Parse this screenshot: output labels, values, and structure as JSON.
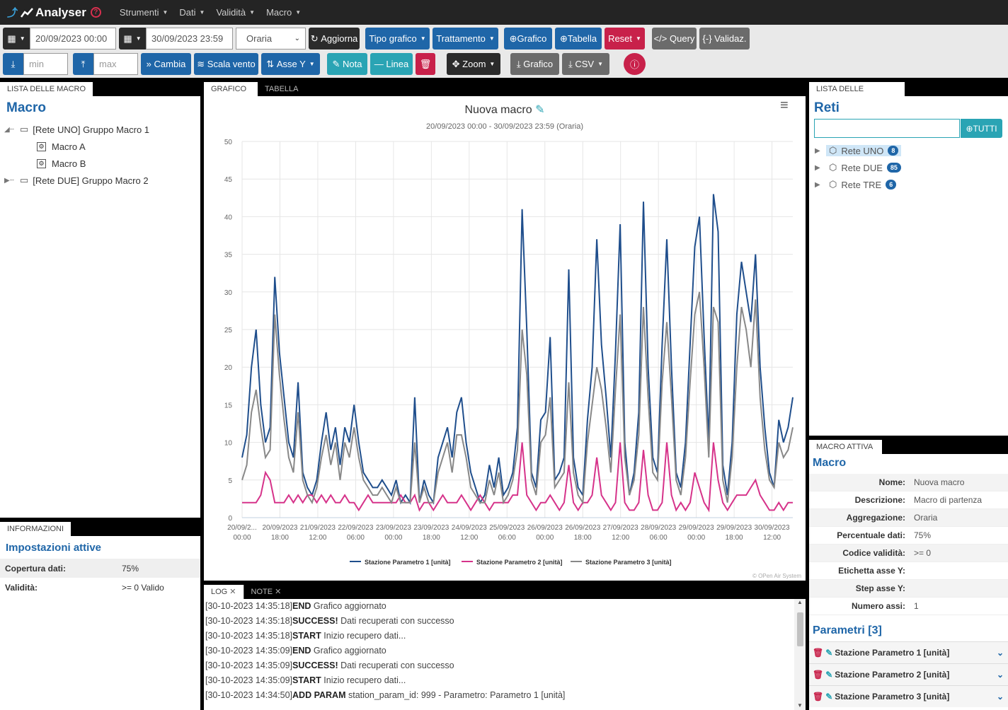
{
  "nav": {
    "brand": "Analyser",
    "help": "?",
    "menus": [
      "Strumenti",
      "Dati",
      "Validità",
      "Macro"
    ]
  },
  "toolbar": {
    "date_from": "20/09/2023 00:00",
    "date_to": "30/09/2023 23:59",
    "aggregation": "Oraria",
    "refresh": "Aggiorna",
    "chart_type": "Tipo grafico",
    "treatment": "Trattamento",
    "add_chart": "Grafico",
    "add_table": "Tabella",
    "reset": "Reset",
    "query": "Query",
    "validate": "Validaz.",
    "min_placeholder": "min",
    "max_placeholder": "max",
    "change": "Cambia",
    "wind_scale": "Scala vento",
    "y_axis": "Asse Y",
    "note": "Nota",
    "line": "Linea",
    "zoom": "Zoom",
    "chart_dl": "Grafico",
    "csv": "CSV"
  },
  "left": {
    "tab": "Lista delle macro",
    "title": "Macro",
    "tree": [
      {
        "label": "[Rete UNO] Gruppo Macro 1",
        "children": [
          "Macro A",
          "Macro B"
        ]
      },
      {
        "label": "[Rete DUE] Gruppo Macro 2"
      }
    ]
  },
  "info": {
    "tab": "Informazioni",
    "title": "Impostazioni attive",
    "rows": [
      {
        "k": "Copertura dati:",
        "v": "75%"
      },
      {
        "k": "Validità:",
        "v": ">= 0 Valido"
      }
    ]
  },
  "center": {
    "tabs": [
      "Grafico",
      "Tabella"
    ],
    "credits": "© OPen Air System"
  },
  "chart_data": {
    "type": "line",
    "title": "Nuova macro",
    "subtitle": "20/09/2023 00:00 - 30/09/2023 23:59 (Oraria)",
    "ylim": [
      0,
      50
    ],
    "yticks": [
      0,
      5,
      10,
      15,
      20,
      25,
      30,
      35,
      40,
      45,
      50
    ],
    "xticks": [
      [
        "20/09/2...",
        "00:00"
      ],
      [
        "20/09/2023",
        "18:00"
      ],
      [
        "21/09/2023",
        "12:00"
      ],
      [
        "22/09/2023",
        "06:00"
      ],
      [
        "23/09/2023",
        "00:00"
      ],
      [
        "23/09/2023",
        "18:00"
      ],
      [
        "24/09/2023",
        "12:00"
      ],
      [
        "25/09/2023",
        "06:00"
      ],
      [
        "26/09/2023",
        "00:00"
      ],
      [
        "26/09/2023",
        "18:00"
      ],
      [
        "27/09/2023",
        "12:00"
      ],
      [
        "28/09/2023",
        "06:00"
      ],
      [
        "29/09/2023",
        "00:00"
      ],
      [
        "29/09/2023",
        "18:00"
      ],
      [
        "30/09/2023",
        "12:00"
      ]
    ],
    "legend": "bottom",
    "series": [
      {
        "name": "Stazione Parametro 1 [unità]",
        "color": "#1f4e8c",
        "values": [
          8,
          11,
          20,
          25,
          15,
          10,
          12,
          32,
          22,
          16,
          10,
          8,
          18,
          6,
          4,
          3,
          5,
          10,
          14,
          9,
          12,
          7,
          12,
          10,
          15,
          10,
          6,
          5,
          4,
          4,
          5,
          4,
          3,
          5,
          2,
          3,
          2,
          16,
          2,
          5,
          3,
          2,
          8,
          10,
          12,
          8,
          14,
          16,
          10,
          6,
          4,
          2,
          3,
          7,
          4,
          8,
          3,
          4,
          6,
          12,
          41,
          25,
          6,
          4,
          13,
          14,
          24,
          5,
          6,
          8,
          33,
          8,
          4,
          3,
          13,
          20,
          37,
          23,
          16,
          8,
          22,
          39,
          10,
          3,
          6,
          14,
          42,
          20,
          8,
          6,
          23,
          37,
          20,
          6,
          4,
          10,
          23,
          36,
          40,
          24,
          10,
          43,
          38,
          7,
          3,
          10,
          27,
          34,
          30,
          26,
          35,
          20,
          12,
          6,
          4,
          13,
          10,
          12,
          16
        ]
      },
      {
        "name": "Stazione Parametro 2 [unità]",
        "color": "#d6338a",
        "values": [
          2,
          2,
          2,
          2,
          3,
          6,
          5,
          2,
          2,
          2,
          3,
          2,
          3,
          2,
          3,
          3,
          2,
          3,
          2,
          3,
          2,
          2,
          3,
          2,
          2,
          1,
          2,
          3,
          2,
          2,
          2,
          2,
          2,
          2,
          3,
          2,
          2,
          3,
          1,
          2,
          2,
          1,
          2,
          3,
          2,
          2,
          2,
          3,
          2,
          1,
          2,
          3,
          2,
          1,
          2,
          2,
          2,
          2,
          3,
          3,
          10,
          3,
          2,
          1,
          2,
          2,
          3,
          2,
          1,
          2,
          7,
          2,
          1,
          2,
          2,
          3,
          8,
          3,
          2,
          1,
          2,
          10,
          2,
          1,
          1,
          2,
          9,
          3,
          1,
          1,
          2,
          10,
          3,
          1,
          2,
          1,
          2,
          6,
          4,
          2,
          1,
          10,
          5,
          2,
          1,
          2,
          3,
          3,
          3,
          4,
          5,
          3,
          2,
          1,
          1,
          2,
          1,
          2,
          2
        ]
      },
      {
        "name": "Stazione Parametro 3 [unità]",
        "color": "#888888",
        "values": [
          5,
          7,
          14,
          17,
          12,
          8,
          9,
          27,
          19,
          13,
          8,
          6,
          14,
          5,
          3,
          2,
          4,
          8,
          11,
          7,
          10,
          5,
          10,
          8,
          12,
          8,
          5,
          4,
          3,
          3,
          4,
          3,
          2,
          4,
          2,
          2,
          2,
          10,
          2,
          4,
          2,
          2,
          6,
          8,
          10,
          6,
          11,
          11,
          8,
          4,
          3,
          2,
          2,
          5,
          3,
          6,
          2,
          3,
          5,
          9,
          25,
          19,
          5,
          3,
          10,
          11,
          16,
          4,
          5,
          6,
          18,
          6,
          3,
          2,
          10,
          15,
          20,
          17,
          12,
          6,
          17,
          27,
          8,
          3,
          5,
          11,
          28,
          16,
          6,
          5,
          18,
          26,
          16,
          5,
          3,
          8,
          18,
          27,
          30,
          20,
          8,
          28,
          26,
          5,
          2,
          8,
          20,
          28,
          25,
          20,
          29,
          16,
          9,
          5,
          4,
          10,
          8,
          9,
          12
        ]
      }
    ]
  },
  "log": {
    "tabs": [
      "Log",
      "Note"
    ],
    "lines": [
      {
        "ts": "[30-10-2023 14:35:18]",
        "kind": "END",
        "msg": "Grafico aggiornato"
      },
      {
        "ts": "[30-10-2023 14:35:18]",
        "kind": "SUCCESS!",
        "msg": "Dati recuperati con successo"
      },
      {
        "ts": "[30-10-2023 14:35:18]",
        "kind": "START",
        "msg": "Inizio recupero dati..."
      },
      {
        "ts": "[30-10-2023 14:35:09]",
        "kind": "END",
        "msg": "Grafico aggiornato"
      },
      {
        "ts": "[30-10-2023 14:35:09]",
        "kind": "SUCCESS!",
        "msg": "Dati recuperati con successo"
      },
      {
        "ts": "[30-10-2023 14:35:09]",
        "kind": "START",
        "msg": "Inizio recupero dati..."
      },
      {
        "ts": "[30-10-2023 14:34:50]",
        "kind": "ADD PARAM",
        "msg": "station_param_id: 999 - Parametro: Parametro 1 [unità]"
      }
    ]
  },
  "stations": {
    "tab": "Lista delle stazioni",
    "title": "Reti",
    "all_btn": "TUTTI",
    "nets": [
      {
        "label": "Rete UNO",
        "count": "8"
      },
      {
        "label": "Rete DUE",
        "count": "85"
      },
      {
        "label": "Rete TRE",
        "count": "6"
      }
    ]
  },
  "active": {
    "tab": "Macro attiva",
    "title": "Macro",
    "rows": [
      {
        "k": "Nome:",
        "v": "Nuova macro"
      },
      {
        "k": "Descrizione:",
        "v": "Macro di partenza"
      },
      {
        "k": "Aggregazione:",
        "v": "Oraria"
      },
      {
        "k": "Percentuale dati:",
        "v": "75%"
      },
      {
        "k": "Codice validità:",
        "v": ">= 0"
      },
      {
        "k": "Etichetta asse Y:",
        "v": ""
      },
      {
        "k": "Step asse Y:",
        "v": ""
      },
      {
        "k": "Numero assi:",
        "v": "1"
      }
    ],
    "params_title": "Parametri [3]",
    "params": [
      "Stazione Parametro 1 [unità]",
      "Stazione Parametro 2 [unità]",
      "Stazione Parametro 3 [unità]"
    ]
  }
}
